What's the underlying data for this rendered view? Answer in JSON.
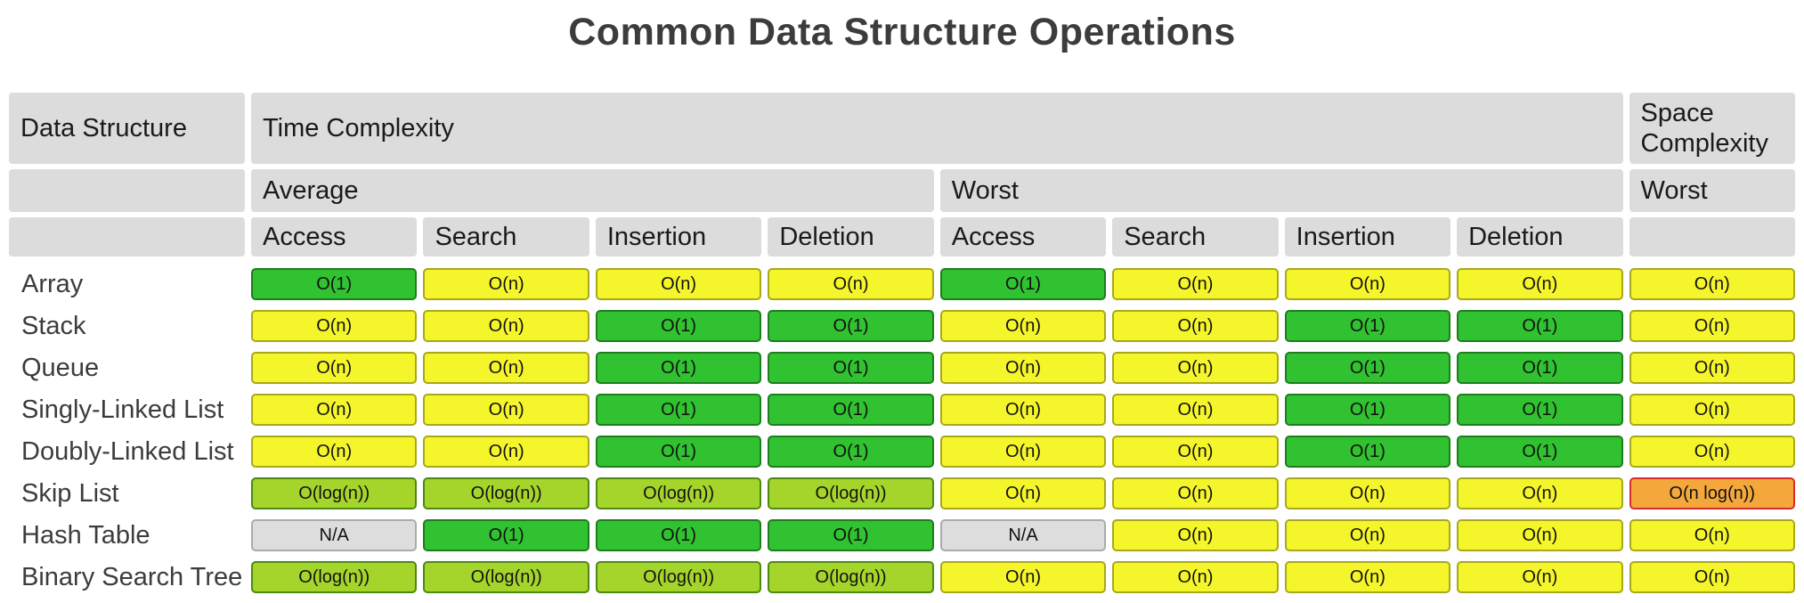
{
  "title": "Common Data Structure Operations",
  "table": {
    "corner_label": "Data Structure",
    "time_complexity_label": "Time Complexity",
    "space_complexity_label": "Space Complexity",
    "average_label": "Average",
    "worst_label": "Worst",
    "space_worst_label": "Worst",
    "operation_headers": [
      "Access",
      "Search",
      "Insertion",
      "Deletion",
      "Access",
      "Search",
      "Insertion",
      "Deletion"
    ],
    "rows": [
      {
        "name": "Array",
        "cells": [
          {
            "text": "O(1)",
            "level": "green"
          },
          {
            "text": "O(n)",
            "level": "yellow"
          },
          {
            "text": "O(n)",
            "level": "yellow"
          },
          {
            "text": "O(n)",
            "level": "yellow"
          },
          {
            "text": "O(1)",
            "level": "green"
          },
          {
            "text": "O(n)",
            "level": "yellow"
          },
          {
            "text": "O(n)",
            "level": "yellow"
          },
          {
            "text": "O(n)",
            "level": "yellow"
          },
          {
            "text": "O(n)",
            "level": "yellow"
          }
        ]
      },
      {
        "name": "Stack",
        "cells": [
          {
            "text": "O(n)",
            "level": "yellow"
          },
          {
            "text": "O(n)",
            "level": "yellow"
          },
          {
            "text": "O(1)",
            "level": "green"
          },
          {
            "text": "O(1)",
            "level": "green"
          },
          {
            "text": "O(n)",
            "level": "yellow"
          },
          {
            "text": "O(n)",
            "level": "yellow"
          },
          {
            "text": "O(1)",
            "level": "green"
          },
          {
            "text": "O(1)",
            "level": "green"
          },
          {
            "text": "O(n)",
            "level": "yellow"
          }
        ]
      },
      {
        "name": "Queue",
        "cells": [
          {
            "text": "O(n)",
            "level": "yellow"
          },
          {
            "text": "O(n)",
            "level": "yellow"
          },
          {
            "text": "O(1)",
            "level": "green"
          },
          {
            "text": "O(1)",
            "level": "green"
          },
          {
            "text": "O(n)",
            "level": "yellow"
          },
          {
            "text": "O(n)",
            "level": "yellow"
          },
          {
            "text": "O(1)",
            "level": "green"
          },
          {
            "text": "O(1)",
            "level": "green"
          },
          {
            "text": "O(n)",
            "level": "yellow"
          }
        ]
      },
      {
        "name": "Singly-Linked List",
        "cells": [
          {
            "text": "O(n)",
            "level": "yellow"
          },
          {
            "text": "O(n)",
            "level": "yellow"
          },
          {
            "text": "O(1)",
            "level": "green"
          },
          {
            "text": "O(1)",
            "level": "green"
          },
          {
            "text": "O(n)",
            "level": "yellow"
          },
          {
            "text": "O(n)",
            "level": "yellow"
          },
          {
            "text": "O(1)",
            "level": "green"
          },
          {
            "text": "O(1)",
            "level": "green"
          },
          {
            "text": "O(n)",
            "level": "yellow"
          }
        ]
      },
      {
        "name": "Doubly-Linked List",
        "cells": [
          {
            "text": "O(n)",
            "level": "yellow"
          },
          {
            "text": "O(n)",
            "level": "yellow"
          },
          {
            "text": "O(1)",
            "level": "green"
          },
          {
            "text": "O(1)",
            "level": "green"
          },
          {
            "text": "O(n)",
            "level": "yellow"
          },
          {
            "text": "O(n)",
            "level": "yellow"
          },
          {
            "text": "O(1)",
            "level": "green"
          },
          {
            "text": "O(1)",
            "level": "green"
          },
          {
            "text": "O(n)",
            "level": "yellow"
          }
        ]
      },
      {
        "name": "Skip List",
        "cells": [
          {
            "text": "O(log(n))",
            "level": "yellowgreen"
          },
          {
            "text": "O(log(n))",
            "level": "yellowgreen"
          },
          {
            "text": "O(log(n))",
            "level": "yellowgreen"
          },
          {
            "text": "O(log(n))",
            "level": "yellowgreen"
          },
          {
            "text": "O(n)",
            "level": "yellow"
          },
          {
            "text": "O(n)",
            "level": "yellow"
          },
          {
            "text": "O(n)",
            "level": "yellow"
          },
          {
            "text": "O(n)",
            "level": "yellow"
          },
          {
            "text": "O(n log(n))",
            "level": "orange"
          }
        ]
      },
      {
        "name": "Hash Table",
        "cells": [
          {
            "text": "N/A",
            "level": "gray"
          },
          {
            "text": "O(1)",
            "level": "green"
          },
          {
            "text": "O(1)",
            "level": "green"
          },
          {
            "text": "O(1)",
            "level": "green"
          },
          {
            "text": "N/A",
            "level": "gray"
          },
          {
            "text": "O(n)",
            "level": "yellow"
          },
          {
            "text": "O(n)",
            "level": "yellow"
          },
          {
            "text": "O(n)",
            "level": "yellow"
          },
          {
            "text": "O(n)",
            "level": "yellow"
          }
        ]
      },
      {
        "name": "Binary Search Tree",
        "cells": [
          {
            "text": "O(log(n))",
            "level": "yellowgreen"
          },
          {
            "text": "O(log(n))",
            "level": "yellowgreen"
          },
          {
            "text": "O(log(n))",
            "level": "yellowgreen"
          },
          {
            "text": "O(log(n))",
            "level": "yellowgreen"
          },
          {
            "text": "O(n)",
            "level": "yellow"
          },
          {
            "text": "O(n)",
            "level": "yellow"
          },
          {
            "text": "O(n)",
            "level": "yellow"
          },
          {
            "text": "O(n)",
            "level": "yellow"
          },
          {
            "text": "O(n)",
            "level": "yellow"
          }
        ]
      }
    ]
  },
  "colors": {
    "green_fill": "#30C230",
    "green_border": "#1E7E1E",
    "yellow_fill": "#F5F52B",
    "yellow_border": "#A8A81D",
    "yellowgreen_fill": "#A5D42B",
    "yellowgreen_border": "#4C8A15",
    "orange_fill": "#F4A83C",
    "orange_border": "#D92B2B",
    "gray_fill": "#DDDDDD",
    "gray_border": "#ABABAB",
    "header_bg": "#DCDCDC",
    "title_text": "#3C3C3C",
    "cell_text": "#111111"
  },
  "chart_data": {
    "type": "table",
    "title": "Common Data Structure Operations",
    "column_groups": [
      "Time Complexity — Average",
      "Time Complexity — Worst",
      "Space Complexity — Worst"
    ],
    "columns": [
      "Average Access",
      "Average Search",
      "Average Insertion",
      "Average Deletion",
      "Worst Access",
      "Worst Search",
      "Worst Insertion",
      "Worst Deletion",
      "Space Complexity (Worst)"
    ],
    "rows": [
      {
        "name": "Array",
        "values": [
          "O(1)",
          "O(n)",
          "O(n)",
          "O(n)",
          "O(1)",
          "O(n)",
          "O(n)",
          "O(n)",
          "O(n)"
        ]
      },
      {
        "name": "Stack",
        "values": [
          "O(n)",
          "O(n)",
          "O(1)",
          "O(1)",
          "O(n)",
          "O(n)",
          "O(1)",
          "O(1)",
          "O(n)"
        ]
      },
      {
        "name": "Queue",
        "values": [
          "O(n)",
          "O(n)",
          "O(1)",
          "O(1)",
          "O(n)",
          "O(n)",
          "O(1)",
          "O(1)",
          "O(n)"
        ]
      },
      {
        "name": "Singly-Linked List",
        "values": [
          "O(n)",
          "O(n)",
          "O(1)",
          "O(1)",
          "O(n)",
          "O(n)",
          "O(1)",
          "O(1)",
          "O(n)"
        ]
      },
      {
        "name": "Doubly-Linked List",
        "values": [
          "O(n)",
          "O(n)",
          "O(1)",
          "O(1)",
          "O(n)",
          "O(n)",
          "O(1)",
          "O(1)",
          "O(n)"
        ]
      },
      {
        "name": "Skip List",
        "values": [
          "O(log(n))",
          "O(log(n))",
          "O(log(n))",
          "O(log(n))",
          "O(n)",
          "O(n)",
          "O(n)",
          "O(n)",
          "O(n log(n))"
        ]
      },
      {
        "name": "Hash Table",
        "values": [
          "N/A",
          "O(1)",
          "O(1)",
          "O(1)",
          "N/A",
          "O(n)",
          "O(n)",
          "O(n)",
          "O(n)"
        ]
      },
      {
        "name": "Binary Search Tree",
        "values": [
          "O(log(n))",
          "O(log(n))",
          "O(log(n))",
          "O(log(n))",
          "O(n)",
          "O(n)",
          "O(n)",
          "O(n)",
          "O(n)"
        ]
      }
    ]
  }
}
